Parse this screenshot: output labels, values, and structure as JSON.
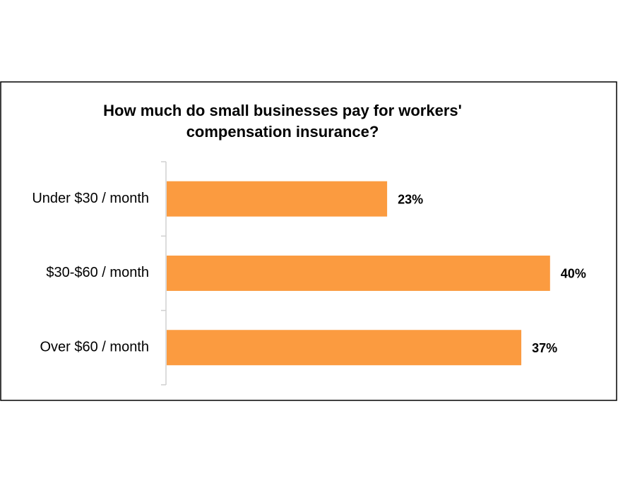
{
  "chart_data": {
    "type": "bar",
    "orientation": "horizontal",
    "title": [
      "How much do small businesses pay for workers'",
      "compensation insurance?"
    ],
    "categories": [
      "Under $30 / month",
      "$30-$60 / month",
      "Over $60 / month"
    ],
    "values": [
      23,
      40,
      37
    ],
    "value_labels": [
      "23%",
      "40%",
      "37%"
    ],
    "color": "#fb9b40"
  }
}
